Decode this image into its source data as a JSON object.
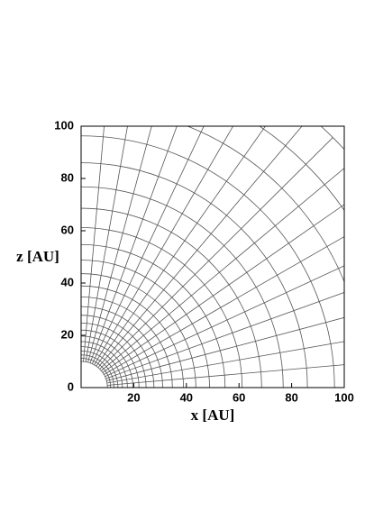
{
  "chart_data": {
    "type": "polar-grid",
    "xlabel": "x [AU]",
    "ylabel": "z [AU]",
    "xlim": [
      0,
      100
    ],
    "ylim": [
      0,
      100
    ],
    "xticks": [
      20,
      40,
      60,
      80,
      100
    ],
    "yticks": [
      0,
      20,
      40,
      60,
      80,
      100
    ],
    "radii": [
      10,
      11.2,
      12.5,
      14,
      15.7,
      17.6,
      19.7,
      22,
      24.7,
      27.7,
      31,
      34.7,
      38.9,
      43.6,
      48.8,
      54.7,
      61.2,
      68.6,
      76.8,
      86,
      96.3,
      107.9,
      120.8,
      135.3
    ],
    "angles": [
      0,
      5,
      10,
      15,
      20,
      25,
      30,
      35,
      40,
      45,
      50,
      55,
      60,
      65,
      70,
      75,
      80,
      85,
      90
    ],
    "color": "#555555"
  }
}
